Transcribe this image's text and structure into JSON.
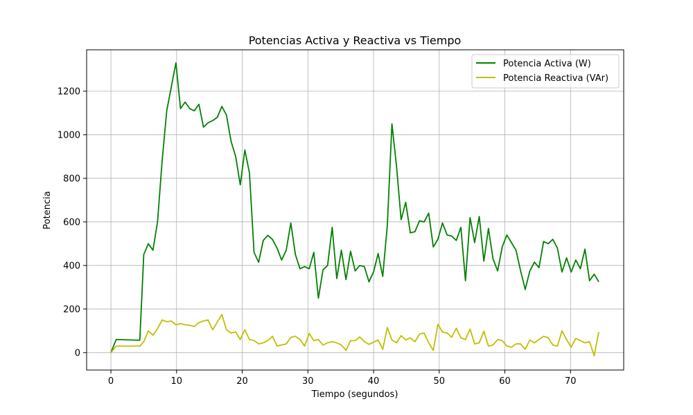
{
  "chart_data": {
    "type": "line",
    "title": "Potencias Activa y Reactiva vs Tiempo",
    "xlabel": "Tiempo (segundos)",
    "ylabel": "Potencia",
    "xlim": [
      -3.7,
      78.1
    ],
    "ylim": [
      -80,
      1390
    ],
    "xticks": [
      0,
      10,
      20,
      30,
      40,
      50,
      60,
      70
    ],
    "yticks": [
      0,
      200,
      400,
      600,
      800,
      1000,
      1200
    ],
    "grid": true,
    "legend_position": "top-right",
    "series": [
      {
        "name": "Potencia Activa (W)",
        "color": "#008000",
        "x": [
          0,
          0.8,
          4.4,
          5.0,
          5.7,
          6.4,
          7.1,
          7.8,
          8.5,
          9.2,
          9.9,
          10.6,
          11.3,
          12.0,
          12.7,
          13.4,
          14.1,
          14.8,
          15.5,
          16.2,
          16.9,
          17.6,
          18.3,
          19.0,
          19.7,
          20.4,
          21.1,
          21.8,
          22.5,
          23.2,
          23.9,
          24.6,
          25.3,
          26.0,
          26.7,
          27.4,
          28.1,
          28.8,
          29.5,
          30.2,
          30.9,
          31.6,
          32.3,
          33.0,
          33.7,
          34.4,
          35.1,
          35.8,
          36.5,
          37.2,
          37.9,
          38.6,
          39.3,
          40.0,
          40.7,
          41.4,
          42.1,
          42.8,
          43.5,
          44.2,
          44.9,
          45.6,
          46.3,
          47.0,
          47.7,
          48.4,
          49.1,
          49.8,
          50.5,
          51.2,
          51.9,
          52.6,
          53.3,
          54.0,
          54.7,
          55.4,
          56.1,
          56.8,
          57.5,
          58.2,
          58.9,
          59.6,
          60.3,
          61.0,
          61.7,
          62.4,
          63.1,
          63.8,
          64.5,
          65.2,
          65.9,
          66.6,
          67.3,
          68.0,
          68.7,
          69.4,
          70.1,
          70.8,
          71.5,
          72.2,
          72.9,
          73.6,
          74.3
        ],
        "y": [
          0,
          60,
          57,
          450,
          500,
          470,
          600,
          880,
          1110,
          1220,
          1330,
          1120,
          1150,
          1120,
          1110,
          1140,
          1035,
          1055,
          1065,
          1080,
          1130,
          1090,
          970,
          900,
          770,
          930,
          825,
          460,
          415,
          515,
          538,
          520,
          480,
          425,
          470,
          595,
          450,
          385,
          395,
          385,
          460,
          250,
          380,
          400,
          575,
          340,
          470,
          335,
          465,
          375,
          400,
          395,
          325,
          370,
          455,
          350,
          585,
          1050,
          855,
          610,
          690,
          550,
          555,
          605,
          600,
          640,
          485,
          520,
          595,
          540,
          535,
          515,
          575,
          330,
          620,
          505,
          625,
          420,
          570,
          430,
          375,
          485,
          540,
          505,
          470,
          375,
          290,
          375,
          415,
          390,
          510,
          500,
          520,
          480,
          370,
          435,
          370,
          425,
          385,
          475,
          330,
          360,
          325
        ]
      },
      {
        "name": "Potencia Reactiva (VAr)",
        "color": "#bfbf00",
        "x": [
          0,
          0.8,
          4.4,
          5.0,
          5.7,
          6.4,
          7.1,
          7.8,
          8.5,
          9.2,
          9.9,
          10.6,
          11.3,
          12.0,
          12.7,
          13.4,
          14.1,
          14.8,
          15.5,
          16.2,
          16.9,
          17.6,
          18.3,
          19.0,
          19.7,
          20.4,
          21.1,
          21.8,
          22.5,
          23.2,
          23.9,
          24.6,
          25.3,
          26.0,
          26.7,
          27.4,
          28.1,
          28.8,
          29.5,
          30.2,
          30.9,
          31.6,
          32.3,
          33.0,
          33.7,
          34.4,
          35.1,
          35.8,
          36.5,
          37.2,
          37.9,
          38.6,
          39.3,
          40.0,
          40.7,
          41.4,
          42.1,
          42.8,
          43.5,
          44.2,
          44.9,
          45.6,
          46.3,
          47.0,
          47.7,
          48.4,
          49.1,
          49.8,
          50.5,
          51.2,
          51.9,
          52.6,
          53.3,
          54.0,
          54.7,
          55.4,
          56.1,
          56.8,
          57.5,
          58.2,
          58.9,
          59.6,
          60.3,
          61.0,
          61.7,
          62.4,
          63.1,
          63.8,
          64.5,
          65.2,
          65.9,
          66.6,
          67.3,
          68.0,
          68.7,
          69.4,
          70.1,
          70.8,
          71.5,
          72.2,
          72.9,
          73.6,
          74.3
        ],
        "y": [
          0,
          30,
          30,
          50,
          100,
          80,
          110,
          150,
          142,
          145,
          128,
          133,
          128,
          125,
          120,
          138,
          145,
          150,
          105,
          140,
          175,
          105,
          90,
          95,
          60,
          105,
          60,
          55,
          40,
          45,
          55,
          75,
          30,
          35,
          40,
          70,
          75,
          60,
          30,
          88,
          55,
          60,
          35,
          45,
          50,
          45,
          35,
          10,
          55,
          55,
          72,
          50,
          38,
          48,
          58,
          15,
          115,
          58,
          45,
          78,
          58,
          68,
          50,
          85,
          90,
          45,
          10,
          130,
          95,
          90,
          70,
          112,
          68,
          60,
          108,
          40,
          45,
          98,
          30,
          35,
          60,
          55,
          30,
          25,
          40,
          40,
          15,
          58,
          45,
          60,
          75,
          68,
          35,
          30,
          100,
          60,
          25,
          65,
          55,
          45,
          50,
          -15,
          95
        ]
      }
    ]
  }
}
